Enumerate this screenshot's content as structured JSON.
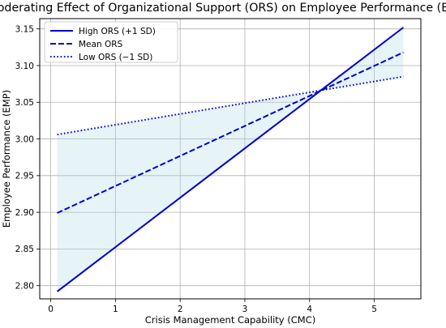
{
  "chart_data": {
    "type": "line",
    "title": "Moderating Effect of Organizational Support (ORS) on Employee Performance (EMP)",
    "xlabel": "Crisis Management Capability (CMC)",
    "ylabel": "Employee Performance (EMP)",
    "xlim": [
      -0.17,
      5.72
    ],
    "ylim": [
      2.782,
      3.164
    ],
    "xticks": [
      0,
      1,
      2,
      3,
      4,
      5
    ],
    "yticks": [
      2.8,
      2.85,
      2.9,
      2.95,
      3.0,
      3.05,
      3.1,
      3.15
    ],
    "xtick_labels": [
      "0",
      "1",
      "2",
      "3",
      "4",
      "5"
    ],
    "ytick_labels": [
      "2.80",
      "2.85",
      "2.90",
      "2.95",
      "3.00",
      "3.05",
      "3.10",
      "3.15"
    ],
    "grid": true,
    "legend_position": "top-left",
    "x_range": [
      0.1,
      5.45
    ],
    "series": [
      {
        "name": "High ORS (+1 SD)",
        "style": "solid",
        "x": [
          0.1,
          5.45
        ],
        "y": [
          2.792,
          3.152
        ]
      },
      {
        "name": "Mean ORS",
        "style": "dashed",
        "x": [
          0.1,
          5.45
        ],
        "y": [
          2.899,
          3.118
        ]
      },
      {
        "name": "Low ORS (−1 SD)",
        "style": "dotted",
        "x": [
          0.1,
          5.45
        ],
        "y": [
          3.006,
          3.085
        ]
      }
    ],
    "shaded_band": {
      "between": [
        "High ORS (+1 SD)",
        "Low ORS (−1 SD)"
      ],
      "color": "#add8e6",
      "opacity": 0.3
    },
    "line_color": "#0000cc"
  }
}
